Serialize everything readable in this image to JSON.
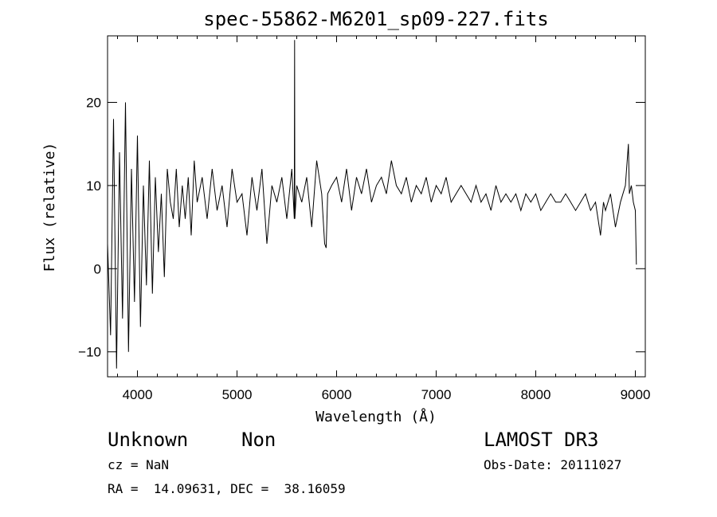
{
  "chart_data": {
    "type": "line",
    "title": "spec-55862-M6201_sp09-227.fits",
    "xlabel": "Wavelength (Å)",
    "ylabel": "Flux (relative)",
    "xlim": [
      3700,
      9100
    ],
    "ylim": [
      -13,
      28
    ],
    "xticks": [
      4000,
      5000,
      6000,
      7000,
      8000,
      9000
    ],
    "yticks": [
      -10,
      0,
      10,
      20
    ],
    "grid": false,
    "series": [
      {
        "name": "flux",
        "x": [
          3700,
          3730,
          3760,
          3790,
          3820,
          3850,
          3880,
          3910,
          3940,
          3970,
          4000,
          4030,
          4060,
          4090,
          4120,
          4150,
          4180,
          4210,
          4240,
          4270,
          4300,
          4330,
          4360,
          4390,
          4420,
          4450,
          4480,
          4510,
          4540,
          4570,
          4600,
          4650,
          4700,
          4750,
          4800,
          4850,
          4900,
          4950,
          5000,
          5050,
          5100,
          5150,
          5200,
          5250,
          5300,
          5350,
          5400,
          5450,
          5500,
          5550,
          5575,
          5578,
          5581,
          5600,
          5650,
          5700,
          5750,
          5800,
          5850,
          5880,
          5895,
          5910,
          5950,
          6000,
          6050,
          6100,
          6150,
          6200,
          6250,
          6300,
          6350,
          6400,
          6450,
          6500,
          6550,
          6600,
          6650,
          6700,
          6750,
          6800,
          6850,
          6900,
          6950,
          7000,
          7050,
          7100,
          7150,
          7200,
          7250,
          7300,
          7350,
          7400,
          7450,
          7500,
          7550,
          7600,
          7650,
          7700,
          7750,
          7800,
          7850,
          7900,
          7950,
          8000,
          8050,
          8100,
          8150,
          8200,
          8250,
          8300,
          8350,
          8400,
          8450,
          8500,
          8550,
          8600,
          8650,
          8680,
          8700,
          8750,
          8800,
          8850,
          8900,
          8930,
          8940,
          8960,
          8980,
          9000,
          9010
        ],
        "values": [
          3,
          -8,
          18,
          -12,
          14,
          -6,
          20,
          -10,
          12,
          -4,
          16,
          -7,
          10,
          -2,
          13,
          -3,
          11,
          2,
          9,
          -1,
          12,
          8,
          6,
          12,
          5,
          10,
          6,
          11,
          4,
          13,
          8,
          11,
          6,
          12,
          7,
          10,
          5,
          12,
          8,
          9,
          4,
          11,
          7,
          12,
          3,
          10,
          8,
          11,
          6,
          12,
          6,
          27.5,
          6,
          10,
          8,
          11,
          5,
          13,
          9,
          3,
          2.5,
          9,
          10,
          11,
          8,
          12,
          7,
          11,
          9,
          12,
          8,
          10,
          11,
          9,
          13,
          10,
          9,
          11,
          8,
          10,
          9,
          11,
          8,
          10,
          9,
          11,
          8,
          9,
          10,
          9,
          8,
          10,
          8,
          9,
          7,
          10,
          8,
          9,
          8,
          9,
          7,
          9,
          8,
          9,
          7,
          8,
          9,
          8,
          8,
          9,
          8,
          7,
          8,
          9,
          7,
          8,
          4,
          8,
          7,
          9,
          5,
          8,
          10,
          15,
          9,
          10,
          8,
          7,
          0.5
        ]
      }
    ]
  },
  "annotations": {
    "object_class": "Unknown",
    "subclass": "Non",
    "survey": "LAMOST DR3",
    "redshift": "cz = NaN",
    "obs_date": "Obs-Date: 20111027",
    "coords": "RA =  14.09631, DEC =  38.16059"
  }
}
